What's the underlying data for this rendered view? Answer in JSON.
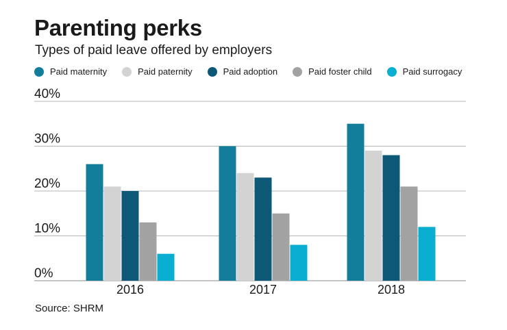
{
  "chart_data": {
    "type": "bar",
    "title": "Parenting perks",
    "subtitle": "Types of paid leave offered by employers",
    "categories": [
      "2016",
      "2017",
      "2018"
    ],
    "series": [
      {
        "name": "Paid maternity",
        "color": "#127e9c",
        "values": [
          26,
          30,
          35
        ]
      },
      {
        "name": "Paid paternity",
        "color": "#d3d3d3",
        "values": [
          21,
          24,
          29
        ]
      },
      {
        "name": "Paid adoption",
        "color": "#0d5877",
        "values": [
          20,
          23,
          28
        ]
      },
      {
        "name": "Paid foster child",
        "color": "#a2a2a2",
        "values": [
          13,
          15,
          21
        ]
      },
      {
        "name": "Paid surrogacy",
        "color": "#0aaed1",
        "values": [
          6,
          8,
          12
        ]
      }
    ],
    "yticks": [
      "0%",
      "10%",
      "20%",
      "30%",
      "40%"
    ],
    "ylim": [
      0,
      40
    ],
    "xlabel": "",
    "ylabel": "",
    "grid": true,
    "legend_position": "top"
  },
  "source": "Source: SHRM"
}
